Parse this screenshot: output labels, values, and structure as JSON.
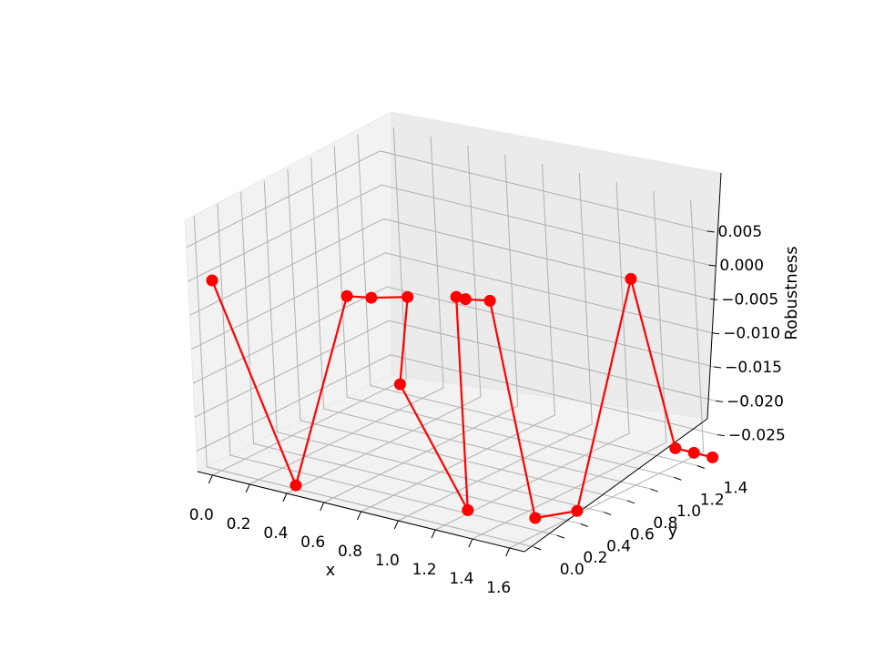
{
  "chart_data": {
    "type": "line3d",
    "title": "",
    "xlabel": "x",
    "ylabel": "y",
    "zlabel": "Robustness",
    "xlim": [
      -0.08,
      1.68
    ],
    "ylim": [
      -0.08,
      1.58
    ],
    "zlim": [
      -0.028,
      0.009
    ],
    "x_ticks": [
      "0.0",
      "0.2",
      "0.4",
      "0.6",
      "0.8",
      "1.0",
      "1.2",
      "1.4",
      "1.6"
    ],
    "y_ticks": [
      "0.0",
      "0.2",
      "0.4",
      "0.6",
      "0.8",
      "1.0",
      "1.2",
      "1.4"
    ],
    "z_ticks": [
      "0.005",
      "0.000",
      "−0.005",
      "−0.010",
      "−0.015",
      "−0.020",
      "−0.025"
    ],
    "grid": true,
    "series": [
      {
        "color": "#ff0000",
        "marker": "circle",
        "points": [
          {
            "x": 0.0,
            "y": 0.0,
            "z": 0.0
          },
          {
            "x": 0.4,
            "y": 0.0,
            "z": -0.0275
          },
          {
            "x": 0.6,
            "y": 0.2,
            "z": 0.0
          },
          {
            "x": 0.7,
            "y": 0.25,
            "z": 0.0
          },
          {
            "x": 0.8,
            "y": 0.4,
            "z": -0.0005
          },
          {
            "x": 0.8,
            "y": 0.3,
            "z": -0.0125
          },
          {
            "x": 1.2,
            "y": 0.2,
            "z": -0.0275
          },
          {
            "x": 1.0,
            "y": 0.5,
            "z": 0.0
          },
          {
            "x": 1.05,
            "y": 0.5,
            "z": 0.0
          },
          {
            "x": 1.15,
            "y": 0.55,
            "z": 0.0
          },
          {
            "x": 1.5,
            "y": 0.3,
            "z": -0.0275
          },
          {
            "x": 1.6,
            "y": 0.5,
            "z": -0.0275
          },
          {
            "x": 1.5,
            "y": 1.2,
            "z": 0.0
          },
          {
            "x": 1.5,
            "y": 1.5,
            "z": -0.0275
          },
          {
            "x": 1.6,
            "y": 1.5,
            "z": -0.0275
          },
          {
            "x": 1.7,
            "y": 1.5,
            "z": -0.0275
          }
        ]
      }
    ]
  }
}
